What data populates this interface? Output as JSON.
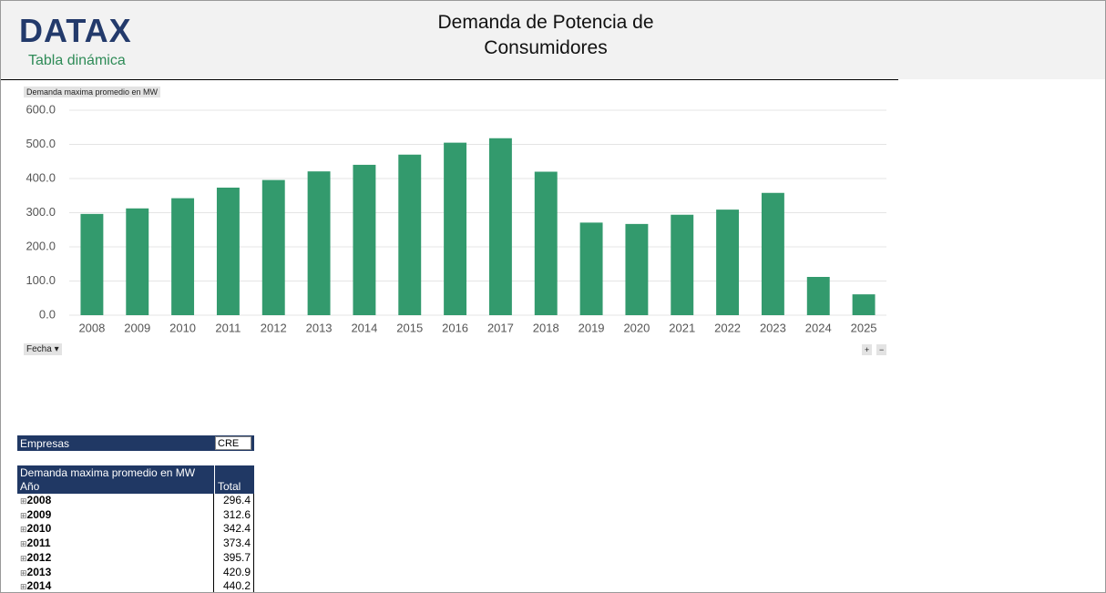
{
  "header": {
    "logo": "DATAX",
    "subtitle": "Tabla dinámica",
    "title": "Demanda de Potencia de Consumidores"
  },
  "chart_data": {
    "type": "bar",
    "value_field": "Demanda maxima promedio en MW",
    "axis_field": "Fecha",
    "categories": [
      "2008",
      "2009",
      "2010",
      "2011",
      "2012",
      "2013",
      "2014",
      "2015",
      "2016",
      "2017",
      "2018",
      "2019",
      "2020",
      "2021",
      "2022",
      "2023",
      "2024",
      "2025"
    ],
    "values": [
      296.4,
      312.6,
      342.4,
      373.4,
      395.7,
      420.9,
      440.2,
      470,
      505,
      518,
      420,
      271,
      267,
      294,
      309,
      358,
      112,
      61
    ],
    "color": "#339a6d",
    "ylim": [
      0,
      600
    ],
    "yticks": [
      {
        "value": 0,
        "label": "0.0"
      },
      {
        "value": 100,
        "label": "100.0"
      },
      {
        "value": 200,
        "label": "200.0"
      },
      {
        "value": 300,
        "label": "300.0"
      },
      {
        "value": 400,
        "label": "400.0"
      },
      {
        "value": 500,
        "label": "500.0"
      },
      {
        "value": 600,
        "label": "600.0"
      }
    ],
    "grid": true
  },
  "table": {
    "filter_label": "Empresas",
    "filter_value": "CRE",
    "value_header": "Demanda maxima promedio en MW",
    "row_header": "Año",
    "total_header": "Total",
    "rows": [
      [
        "2008",
        296.4
      ],
      [
        "2009",
        312.6
      ],
      [
        "2010",
        342.4
      ],
      [
        "2011",
        373.4
      ],
      [
        "2012",
        395.7
      ],
      [
        "2013",
        420.9
      ],
      [
        "2014",
        440.2
      ]
    ]
  }
}
